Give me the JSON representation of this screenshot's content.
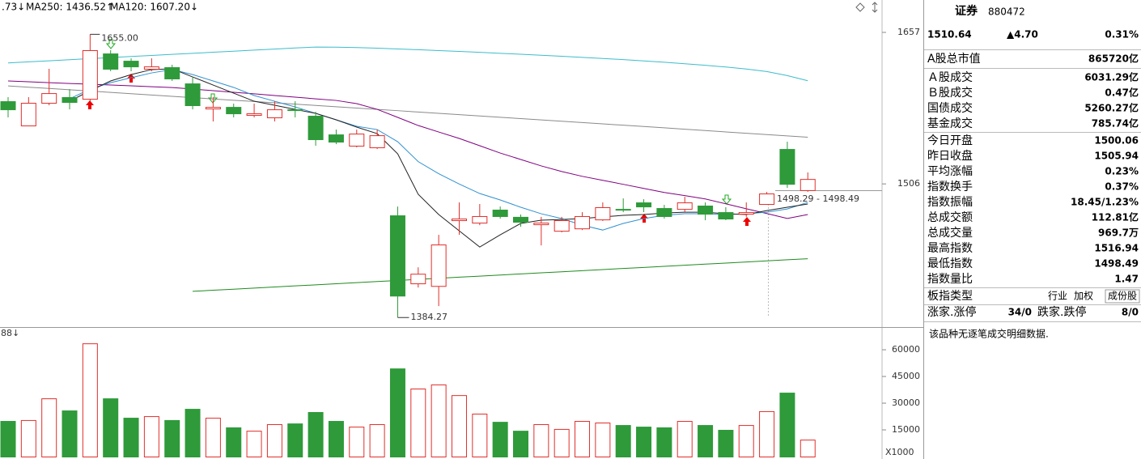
{
  "chart_data": [
    {
      "type": "candlestick",
      "legend": [
        "MA250: 1436.52↑",
        "MA120: 1607.20↓"
      ],
      "ylim": [
        1378.8,
        1691.2
      ],
      "log": true,
      "yticks": [
        1506,
        1657
      ],
      "up_color": "#e0302c",
      "down_color": "#2e9a3a",
      "open": [
        1586.6,
        1562.5,
        1585.0,
        1590.7,
        1589.0,
        1635.1,
        1627.6,
        1619.4,
        1621.0,
        1604.5,
        1579.3,
        1580.9,
        1572.9,
        1570.5,
        1578.5,
        1572.1,
        1553.7,
        1542.7,
        1541.1,
        1476.4,
        1414.4,
        1412.1,
        1471.9,
        1469.6,
        1481.7,
        1475.0,
        1468.1,
        1462.1,
        1464.3,
        1472.6,
        1482.4,
        1488.5,
        1483.2,
        1482.4,
        1485.5,
        1479.4,
        1477.9,
        1487.0,
        1539.5,
        1500.06
      ],
      "high": [
        1590.7,
        1590.7,
        1619.4,
        1598.8,
        1655.0,
        1638.5,
        1630.1,
        1630.1,
        1623.5,
        1611.1,
        1590.7,
        1584.2,
        1584.2,
        1586.6,
        1586.6,
        1576.1,
        1558.5,
        1558.5,
        1558.5,
        1484.7,
        1428.8,
        1458.4,
        1488.5,
        1487.0,
        1484.7,
        1477.2,
        1475.0,
        1475.0,
        1479.4,
        1488.5,
        1492.3,
        1491.5,
        1486.2,
        1493.8,
        1488.5,
        1484.0,
        1488.5,
        1498.4,
        1546.6,
        1516.94
      ],
      "low": [
        1570.5,
        1562.5,
        1582.6,
        1578.5,
        1586.6,
        1616.9,
        1616.9,
        1616.9,
        1607.0,
        1578.5,
        1566.5,
        1570.5,
        1570.5,
        1566.5,
        1570.5,
        1542.7,
        1544.2,
        1541.1,
        1539.5,
        1384.27,
        1410.7,
        1394.3,
        1458.4,
        1467.3,
        1473.4,
        1465.8,
        1448.7,
        1460.7,
        1462.8,
        1471.2,
        1479.4,
        1479.4,
        1473.4,
        1479.4,
        1471.9,
        1471.9,
        1475.0,
        1486.2,
        1502.2,
        1498.49
      ],
      "close": [
        1578.5,
        1585.0,
        1594.7,
        1585.8,
        1638.5,
        1619.4,
        1621.8,
        1621.8,
        1609.5,
        1582.6,
        1580.9,
        1574.5,
        1574.5,
        1578.5,
        1577.7,
        1549.0,
        1546.6,
        1554.5,
        1552.9,
        1403.5,
        1423.0,
        1449.5,
        1473.4,
        1475.7,
        1475.7,
        1470.4,
        1469.6,
        1471.9,
        1475.7,
        1484.0,
        1481.7,
        1484.7,
        1475.7,
        1488.5,
        1477.9,
        1473.4,
        1479.4,
        1496.9,
        1506.0,
        1510.64
      ],
      "series": [
        {
          "name": ".73↓",
          "color": "#8a8a8a",
          "values": [
            1602.0,
            1600.7,
            1599.4,
            1598.1,
            1596.8,
            1595.5,
            1594.2,
            1592.8,
            1591.5,
            1590.2,
            1588.9,
            1587.6,
            1586.3,
            1585.0,
            1583.7,
            1582.4,
            1581.1,
            1579.8,
            1578.5,
            1577.2,
            1575.8,
            1574.5,
            1573.2,
            1571.9,
            1570.6,
            1569.3,
            1568.0,
            1566.7,
            1565.4,
            1564.1,
            1562.8,
            1561.5,
            1560.2,
            1558.8,
            1557.5,
            1556.2,
            1554.9,
            1553.6,
            1552.3,
            1551.0
          ]
        },
        {
          "name": "MA250: 1436.52↑",
          "color": "#1f8a1f",
          "values": [
            null,
            null,
            null,
            null,
            null,
            null,
            null,
            null,
            null,
            1407.3,
            1408.3,
            1409.2,
            1410.2,
            1411.2,
            1412.2,
            1413.1,
            1414.1,
            1415.1,
            1416.1,
            1417.0,
            1418.0,
            1419.0,
            1420.0,
            1420.9,
            1421.9,
            1422.9,
            1423.9,
            1424.8,
            1425.8,
            1426.8,
            1427.8,
            1428.7,
            1429.7,
            1430.7,
            1431.7,
            1432.6,
            1433.6,
            1434.6,
            1435.6,
            1436.52
          ]
        },
        {
          "name": "MA120: 1607.20↓",
          "color": "#3cbccc",
          "values": [
            1625.4,
            1626.5,
            1627.6,
            1628.7,
            1629.8,
            1630.9,
            1632.0,
            1633.1,
            1634.2,
            1635.3,
            1636.4,
            1637.5,
            1638.6,
            1639.7,
            1640.8,
            1641.8,
            1641.6,
            1641.2,
            1640.6,
            1639.8,
            1639.0,
            1638.1,
            1637.2,
            1636.3,
            1635.3,
            1634.3,
            1633.3,
            1632.2,
            1631.1,
            1630.0,
            1628.8,
            1627.5,
            1626.1,
            1624.6,
            1623.0,
            1621.2,
            1619.2,
            1616.6,
            1612.5,
            1607.2
          ]
        },
        {
          "color": "#800080",
          "values": [
            1607.0,
            1606.2,
            1605.3,
            1604.5,
            1603.7,
            1602.9,
            1602.1,
            1601.2,
            1600.4,
            1598.8,
            1597.2,
            1595.6,
            1594.0,
            1592.3,
            1590.7,
            1589.0,
            1587.4,
            1584.2,
            1578.5,
            1570.5,
            1562.5,
            1556.1,
            1549.8,
            1542.7,
            1535.6,
            1529.4,
            1523.2,
            1517.8,
            1513.2,
            1509.4,
            1505.6,
            1501.7,
            1497.9,
            1494.9,
            1491.8,
            1487.2,
            1482.6,
            1478.1,
            1473.5,
            1477.2
          ]
        },
        {
          "color": "#3090d0",
          "values": [
            null,
            null,
            null,
            1589.0,
            1598.8,
            1605.3,
            1610.3,
            1615.2,
            1618.6,
            1613.5,
            1607.0,
            1600.5,
            1592.3,
            1586.6,
            1580.9,
            1574.5,
            1568.1,
            1561.7,
            1558.5,
            1546.6,
            1527.3,
            1515.7,
            1505.9,
            1496.9,
            1490.8,
            1484.0,
            1477.9,
            1473.4,
            1467.3,
            1462.8,
            1468.9,
            1473.4,
            1476.4,
            1477.9,
            1477.9,
            1477.2,
            1477.9,
            1479.4,
            1482.4,
            1488.5
          ]
        },
        {
          "color": "#222222",
          "values": [
            null,
            null,
            null,
            1586.6,
            1597.2,
            1607.0,
            1613.5,
            1618.6,
            1619.4,
            1611.1,
            1602.9,
            1594.7,
            1586.6,
            1582.6,
            1578.5,
            1574.5,
            1568.1,
            1560.9,
            1554.5,
            1534.8,
            1496.2,
            1477.2,
            1462.1,
            1447.2,
            1458.4,
            1468.9,
            1471.9,
            1472.6,
            1473.4,
            1475.0,
            1476.4,
            1477.2,
            1478.6,
            1479.4,
            1479.4,
            1477.9,
            1477.2,
            1480.9,
            1484.0,
            1487.0
          ]
        }
      ],
      "annotations": [
        "1655.00",
        "1384.27",
        "1498.29 - 1498.49"
      ]
    },
    {
      "type": "bar",
      "title": "88↓",
      "unit_label": "X1000",
      "ylim": [
        0,
        71400
      ],
      "yticks": [
        15000,
        30000,
        45000,
        60000
      ],
      "values": [
        20000,
        20500,
        32700,
        25900,
        63600,
        32700,
        21800,
        22700,
        20500,
        26800,
        21800,
        16400,
        14500,
        18200,
        18600,
        25000,
        20000,
        16800,
        18200,
        49500,
        38200,
        40500,
        34500,
        24100,
        19500,
        14500,
        18200,
        15500,
        20000,
        19100,
        17700,
        16800,
        16400,
        20000,
        17700,
        15000,
        17700,
        25500,
        35900,
        9500
      ]
    }
  ],
  "panel": {
    "name": "证券",
    "code": "880472",
    "price": "1510.64",
    "change": "▲4.70",
    "pct": "0.31%",
    "rows": [
      {
        "label": "A股总市值",
        "value": "865720亿",
        "color": "#000000"
      },
      {
        "label": "Ａ股成交",
        "value": "6031.29亿",
        "color": "#000000"
      },
      {
        "label": "Ｂ股成交",
        "value": "0.47亿",
        "color": "#000000"
      },
      {
        "label": "国债成交",
        "value": "5260.27亿",
        "color": "#000000"
      },
      {
        "label": "基金成交",
        "value": "785.74亿",
        "color": "#000000"
      },
      {
        "label": "今日开盘",
        "value": "1500.06",
        "color": "#2e9a3a"
      },
      {
        "label": "昨日收盘",
        "value": "1505.94",
        "color": "#000000"
      },
      {
        "label": "平均涨幅",
        "value": "0.23%",
        "color": "#e0302c"
      },
      {
        "label": "指数换手",
        "value": "0.37%",
        "color": "#000000"
      },
      {
        "label": "指数振幅",
        "value": "18.45/1.23%",
        "color": "#000000"
      },
      {
        "label": "总成交额",
        "value": "112.81亿",
        "color": "#000000"
      },
      {
        "label": "总成交量",
        "value": "969.7万",
        "color": "#000000"
      },
      {
        "label": "最高指数",
        "value": "1516.94",
        "color": "#e0302c"
      },
      {
        "label": "最低指数",
        "value": "1498.49",
        "color": "#2e9a3a"
      },
      {
        "label": "指数量比",
        "value": "1.47",
        "color": "#e0302c"
      }
    ],
    "type_label": "板指类型",
    "type_buttons": [
      "行业",
      "加权",
      "成份股"
    ],
    "breadth": [
      "涨家.涨停",
      "34/0",
      "跌家.跌停",
      "8/0"
    ],
    "notice": "该品种无逐笔成交明细数据."
  }
}
